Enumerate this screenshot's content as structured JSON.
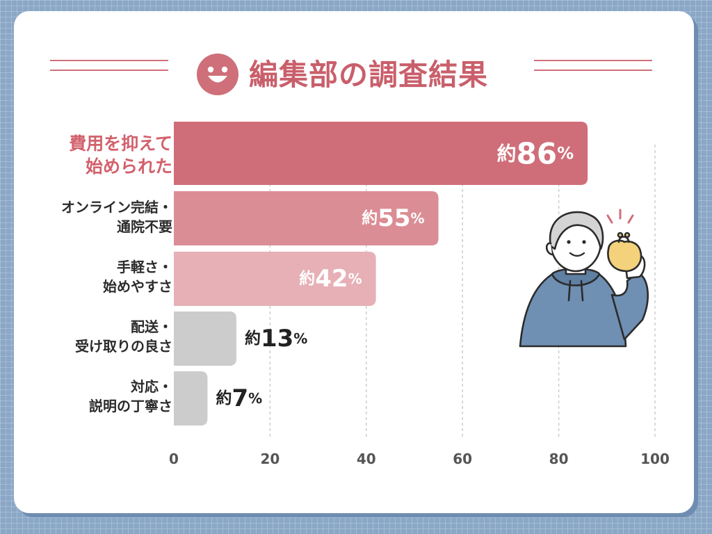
{
  "header": {
    "title": "編集部の調査結果",
    "icon": "smiley-face-icon",
    "accent_color": "#cf6f79"
  },
  "illustration": {
    "name": "person-holding-coin-purse"
  },
  "chart_data": {
    "type": "bar",
    "orientation": "horizontal",
    "categories": [
      "費用を抑えて\n始められた",
      "オンライン完結・\n通院不要",
      "手軽さ・\n始めやすさ",
      "配送・\n受け取りの良さ",
      "対応・\n説明の丁寧さ"
    ],
    "values": [
      86,
      55,
      42,
      13,
      7
    ],
    "data_labels": [
      {
        "prefix": "約",
        "number": "86",
        "unit": "%"
      },
      {
        "prefix": "約",
        "number": "55",
        "unit": "%"
      },
      {
        "prefix": "約",
        "number": "42",
        "unit": "%"
      },
      {
        "prefix": "約",
        "number": "13",
        "unit": "%"
      },
      {
        "prefix": "約",
        "number": "7",
        "unit": "%"
      }
    ],
    "bar_colors": [
      "#cf6e79",
      "#db8d95",
      "#e6b0b6",
      "#cccccc",
      "#cccccc"
    ],
    "xlim": [
      0,
      100
    ],
    "x_ticks": [
      "0",
      "20",
      "40",
      "60",
      "80",
      "100"
    ],
    "x_tick_values": [
      0,
      20,
      40,
      60,
      80,
      100
    ],
    "grid": "vertical dashed",
    "highlight_index": 0
  }
}
